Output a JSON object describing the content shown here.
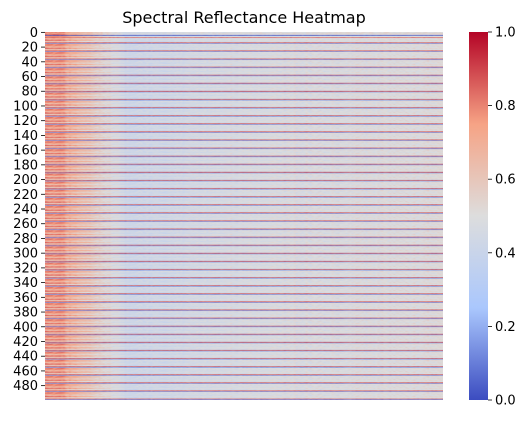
{
  "chart_data": {
    "type": "heatmap",
    "title": "Spectral Reflectance Heatmap",
    "xlabel": "",
    "ylabel": "",
    "x_ticks_visible": false,
    "row_count": 500,
    "column_count": 200,
    "y_tick_labels": [
      "0",
      "20",
      "40",
      "60",
      "80",
      "100",
      "120",
      "140",
      "160",
      "180",
      "200",
      "220",
      "240",
      "260",
      "280",
      "300",
      "320",
      "340",
      "360",
      "380",
      "400",
      "420",
      "440",
      "460",
      "480"
    ],
    "value_range": [
      0.0,
      1.0
    ],
    "colormap": "coolwarm",
    "colormap_stops": [
      "#3b4cc0",
      "#aac7fd",
      "#dddddd",
      "#f6a385",
      "#b40426"
    ],
    "colorbar_ticks": [
      "0.0",
      "0.2",
      "0.4",
      "0.6",
      "0.8",
      "1.0"
    ],
    "colorbar_tick_values": [
      0.0,
      0.2,
      0.4,
      0.6,
      0.8,
      1.0
    ],
    "cell_values": "dense per-pixel reflectance values (approx. 0.3–0.7 typical); left columns (0–~40) warmer (~0.6–0.8), center columns cooler (~0.3–0.45), right columns ~0.45–0.55; scattered full-width rows near 0.0 or 1.0"
  }
}
